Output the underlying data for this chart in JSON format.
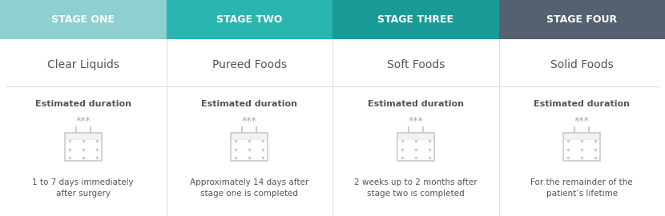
{
  "stages": [
    "STAGE ONE",
    "STAGE TWO",
    "STAGE THREE",
    "STAGE FOUR"
  ],
  "header_colors": [
    "#8ecfcf",
    "#2ab5b0",
    "#1a9a96",
    "#556070"
  ],
  "food_types": [
    "Clear Liquids",
    "Pureed Foods",
    "Soft Foods",
    "Solid Foods"
  ],
  "estimated_label": "Estimated duration",
  "stars": "***",
  "durations": [
    "1 to 7 days immediately\nafter surgery",
    "Approximately 14 days after\nstage one is completed",
    "2 weeks up to 2 months after\nstage two is completed",
    "For the remainder of the\npatient’s lifetime"
  ],
  "bg_color": "#ffffff",
  "header_text_color": "#ffffff",
  "body_text_color": "#555555",
  "divider_color": "#dddddd",
  "stars_color": "#aaaaaa",
  "calendar_color": "#cccccc"
}
